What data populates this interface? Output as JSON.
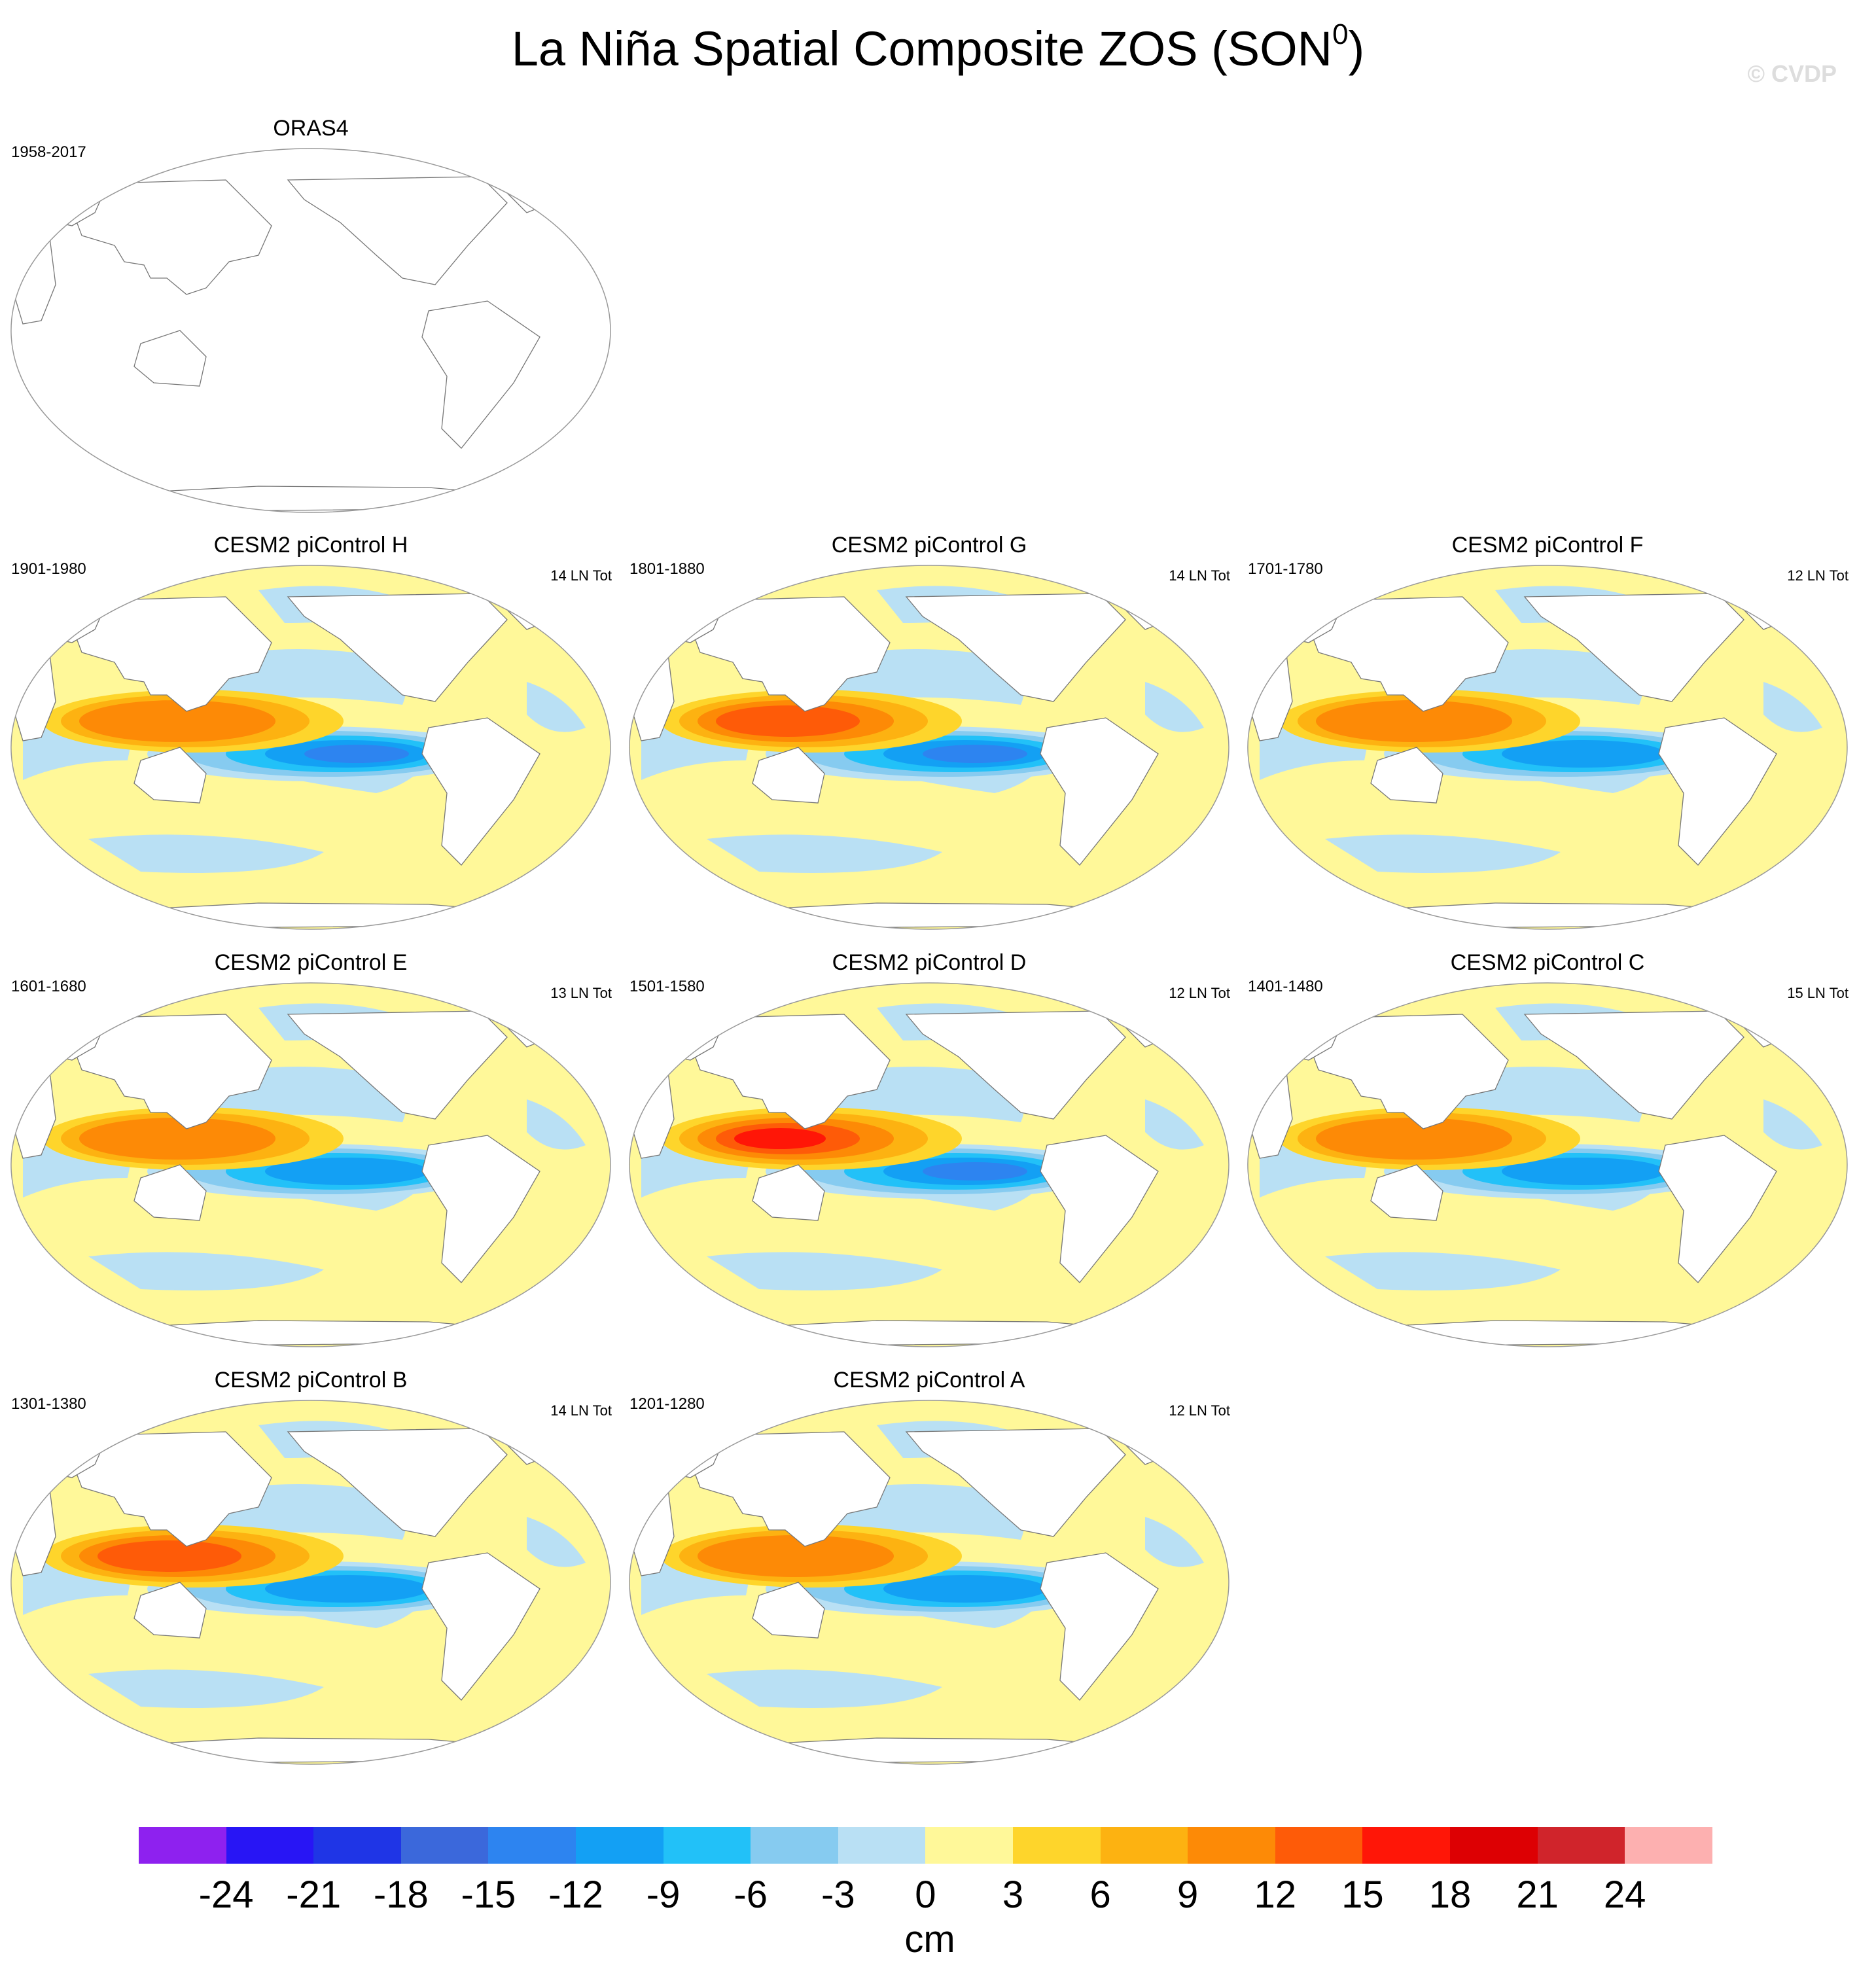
{
  "title": {
    "main": "La Niña Spatial Composite ZOS (SON",
    "superscript": "0",
    "close": ")"
  },
  "watermark": "© CVDP",
  "chart_data": {
    "type": "heatmap",
    "variable": "ZOS",
    "season": "SON",
    "units": "cm",
    "colorbar": {
      "levels": [
        -24,
        -21,
        -18,
        -15,
        -12,
        -9,
        -6,
        -3,
        0,
        3,
        6,
        9,
        12,
        15,
        18,
        21,
        24
      ],
      "colors": [
        "#8e21ef",
        "#2815f5",
        "#1f35e6",
        "#3b68db",
        "#2d84f0",
        "#13a0f4",
        "#22c1f8",
        "#86cbf0",
        "#b9e0f4",
        "#fff899",
        "#fed52b",
        "#fdb211",
        "#fd8a06",
        "#fe5b08",
        "#ff1607",
        "#dd0003",
        "#d0242b",
        "#fdb0b0"
      ]
    },
    "panels": [
      {
        "name": "ORAS4",
        "years": "1958-2017",
        "count": "",
        "filled": false
      },
      {
        "name": "CESM2 piControl H",
        "years": "1901-1980",
        "count": "14 LN Tot",
        "filled": true,
        "warm": 11,
        "cold": -12
      },
      {
        "name": "CESM2 piControl G",
        "years": "1801-1880",
        "count": "14 LN Tot",
        "filled": true,
        "warm": 12,
        "cold": -13
      },
      {
        "name": "CESM2 piControl F",
        "years": "1701-1780",
        "count": "12 LN Tot",
        "filled": true,
        "warm": 11,
        "cold": -10
      },
      {
        "name": "CESM2 piControl E",
        "years": "1601-1680",
        "count": "13 LN Tot",
        "filled": true,
        "warm": 10,
        "cold": -11
      },
      {
        "name": "CESM2 piControl D",
        "years": "1501-1580",
        "count": "12 LN Tot",
        "filled": true,
        "warm": 16,
        "cold": -14
      },
      {
        "name": "CESM2 piControl C",
        "years": "1401-1480",
        "count": "15 LN Tot",
        "filled": true,
        "warm": 11,
        "cold": -10
      },
      {
        "name": "CESM2 piControl B",
        "years": "1301-1380",
        "count": "14 LN Tot",
        "filled": true,
        "warm": 12,
        "cold": -11
      },
      {
        "name": "CESM2 piControl A",
        "years": "1201-1280",
        "count": "12 LN Tot",
        "filled": true,
        "warm": 10,
        "cold": -10
      }
    ]
  }
}
